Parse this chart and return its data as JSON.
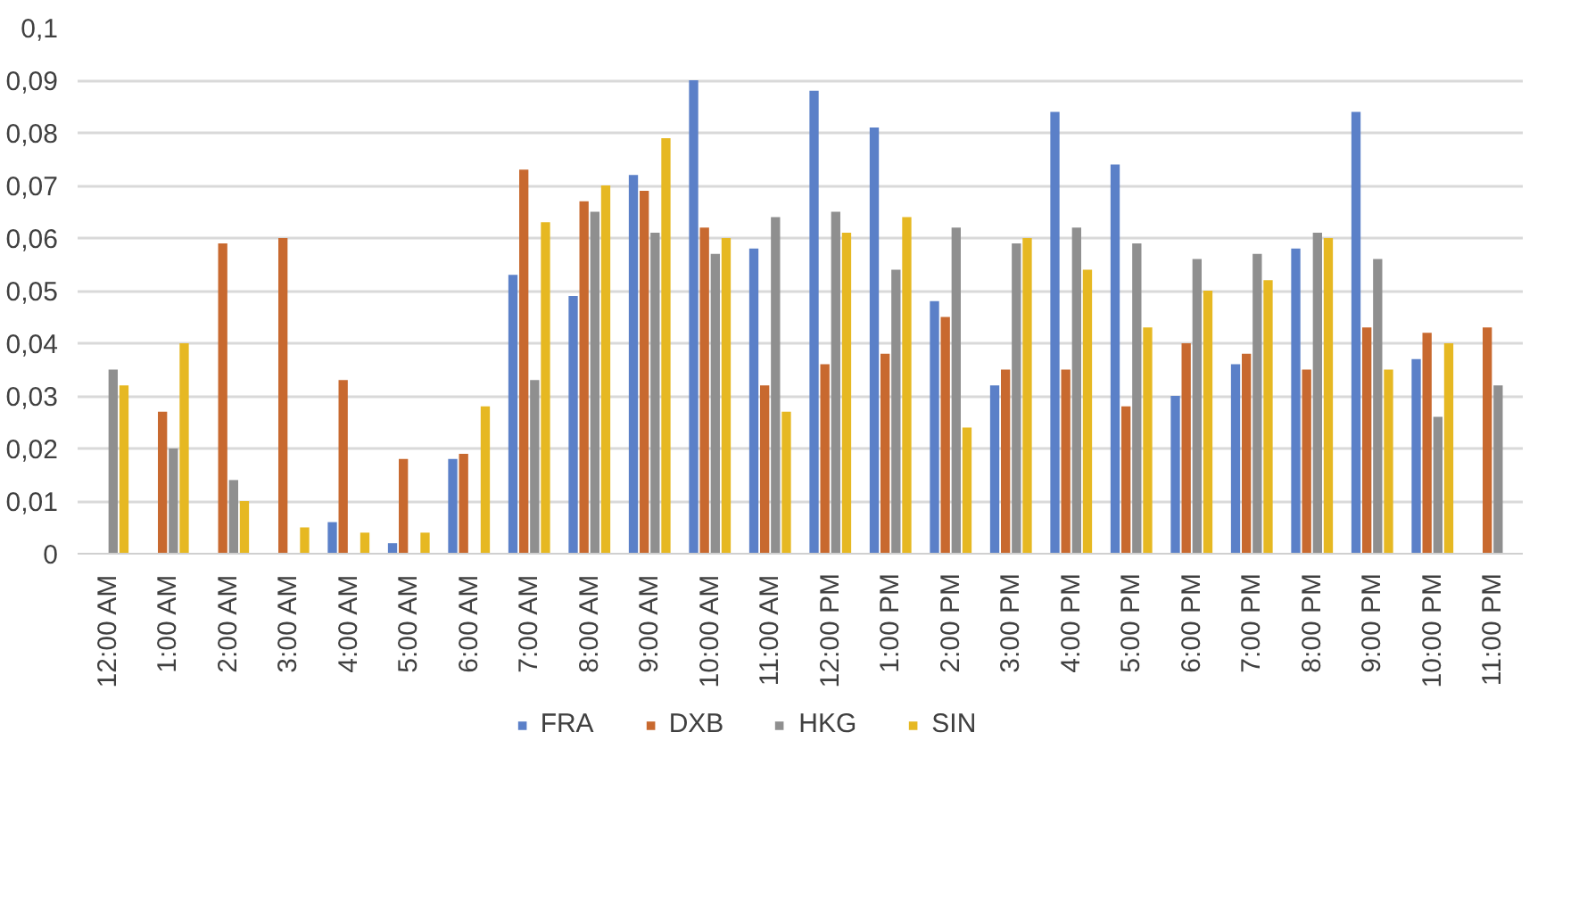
{
  "chart_data": {
    "type": "bar",
    "categories": [
      "12:00 AM",
      "1:00 AM",
      "2:00 AM",
      "3:00 AM",
      "4:00 AM",
      "5:00 AM",
      "6:00 AM",
      "7:00 AM",
      "8:00 AM",
      "9:00 AM",
      "10:00 AM",
      "11:00 AM",
      "12:00 PM",
      "1:00 PM",
      "2:00 PM",
      "3:00 PM",
      "4:00 PM",
      "5:00 PM",
      "6:00 PM",
      "7:00 PM",
      "8:00 PM",
      "9:00 PM",
      "10:00 PM",
      "11:00 PM"
    ],
    "series": [
      {
        "name": "FRA",
        "color": "#5b80c8",
        "values": [
          0,
          0,
          0,
          0,
          0.006,
          0.002,
          0.018,
          0.053,
          0.049,
          0.072,
          0.09,
          0.058,
          0.088,
          0.081,
          0.048,
          0.032,
          0.084,
          0.074,
          0.03,
          0.036,
          0.058,
          0.084,
          0.037,
          0
        ]
      },
      {
        "name": "DXB",
        "color": "#c8692f",
        "values": [
          0,
          0.027,
          0.059,
          0.06,
          0.033,
          0.018,
          0.019,
          0.073,
          0.067,
          0.069,
          0.062,
          0.032,
          0.036,
          0.038,
          0.045,
          0.035,
          0.035,
          0.028,
          0.04,
          0.038,
          0.035,
          0.043,
          0.042,
          0.043
        ]
      },
      {
        "name": "HKG",
        "color": "#8f8f8f",
        "values": [
          0.035,
          0.02,
          0.014,
          0,
          0,
          0,
          0,
          0.033,
          0.065,
          0.061,
          0.057,
          0.064,
          0.065,
          0.054,
          0.062,
          0.059,
          0.062,
          0.059,
          0.056,
          0.057,
          0.061,
          0.056,
          0.026,
          0.032
        ]
      },
      {
        "name": "SIN",
        "color": "#e6b822",
        "values": [
          0.032,
          0.04,
          0.01,
          0.005,
          0.004,
          0.004,
          0.028,
          0.063,
          0.07,
          0.079,
          0.06,
          0.027,
          0.061,
          0.064,
          0.024,
          0.06,
          0.054,
          0.043,
          0.05,
          0.052,
          0.06,
          0.035,
          0.04,
          0
        ]
      }
    ],
    "ylim": [
      0,
      0.1
    ],
    "yticks": [
      0,
      {
        "value": 0.01,
        "label": "0,01"
      },
      {
        "value": 0.02,
        "label": "0,02"
      },
      {
        "value": 0.03,
        "label": "0,03"
      },
      {
        "value": 0.04,
        "label": "0,04"
      },
      {
        "value": 0.05,
        "label": "0,05"
      },
      {
        "value": 0.06,
        "label": "0,06"
      },
      {
        "value": 0.07,
        "label": "0,07"
      },
      {
        "value": 0.08,
        "label": "0,08"
      },
      {
        "value": 0.09,
        "label": "0,09"
      },
      {
        "value": 0.1,
        "label": "0,1"
      }
    ],
    "grid": "y",
    "legend": "bottom"
  }
}
